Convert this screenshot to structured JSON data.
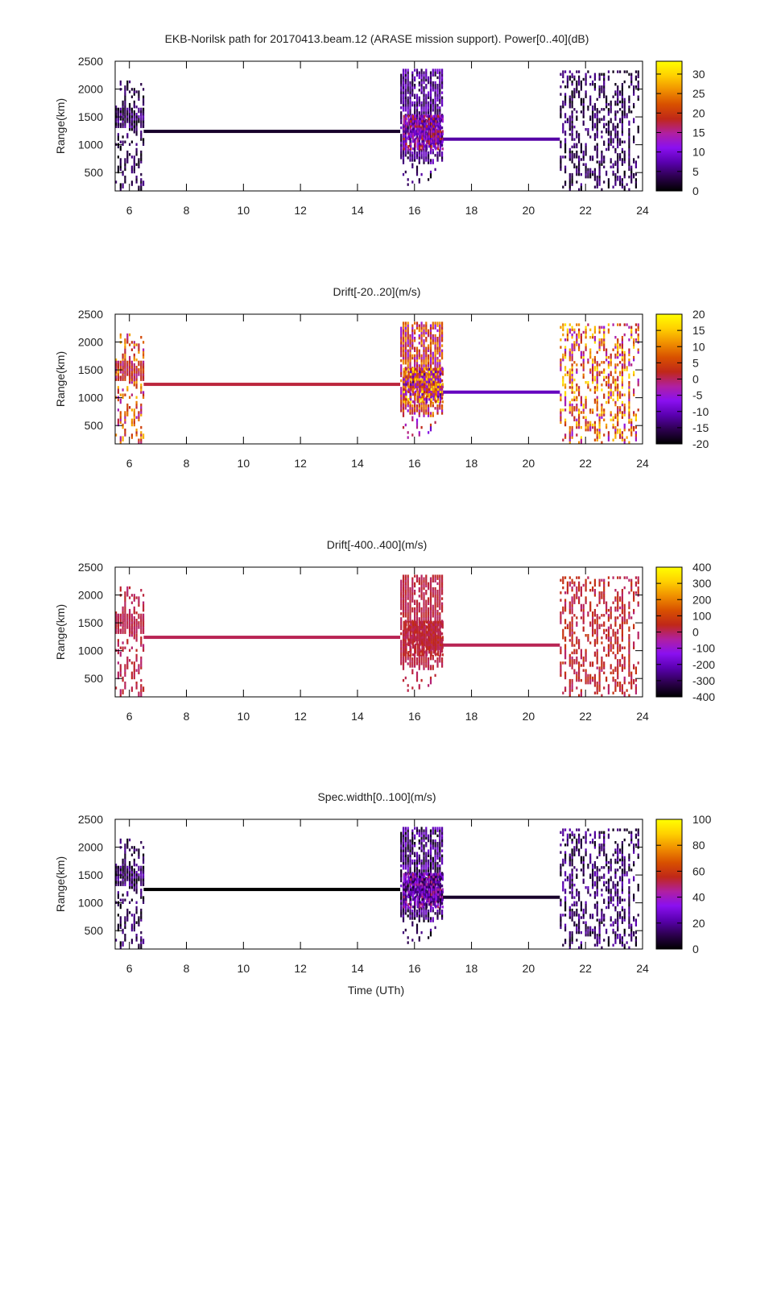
{
  "chart_data": {
    "type": "heatmap",
    "title": "EKB-Norilsk path for 20170413.beam.12 (ARASE mission support). Power[0..40](dB)",
    "xlabel": "Time (UTh)",
    "ylabel": "Range(km)",
    "xlim": [
      5.5,
      24
    ],
    "ylim": [
      170,
      2500
    ],
    "xticks": [
      6,
      8,
      10,
      12,
      14,
      16,
      18,
      20,
      22,
      24
    ],
    "yticks": [
      500,
      1000,
      1500,
      2000,
      2500
    ],
    "grid": false,
    "cell_size": {
      "hours": 0.08,
      "km": 45
    },
    "scatter_regions": [
      {
        "x": [
          5.5,
          6.5
        ],
        "range": [
          170,
          2150
        ],
        "density": 0.18
      },
      {
        "x": [
          5.5,
          6.5
        ],
        "range": [
          1300,
          1620
        ],
        "density": 0.7
      },
      {
        "x": [
          15.5,
          17.0
        ],
        "range": [
          650,
          2330
        ],
        "density": 0.45
      },
      {
        "x": [
          15.6,
          17.0
        ],
        "range": [
          900,
          1500
        ],
        "density": 0.8
      },
      {
        "x": [
          15.5,
          17.0
        ],
        "range": [
          170,
          650
        ],
        "density": 0.06
      },
      {
        "x": [
          21.1,
          23.9
        ],
        "range": [
          170,
          2330
        ],
        "density": 0.22
      }
    ],
    "constant_lines": [
      {
        "x": [
          6.5,
          15.5
        ],
        "range": 1240
      },
      {
        "x": [
          17.0,
          21.1
        ],
        "range": 1100
      }
    ],
    "panels": [
      {
        "title": "",
        "cbrange": [
          0,
          33.3
        ],
        "cbticks": [
          0,
          5,
          10,
          15,
          20,
          25,
          30
        ],
        "region_values": [
          [
            0,
            6
          ],
          [
            0,
            8
          ],
          [
            2,
            10
          ],
          [
            5,
            20
          ],
          [
            0,
            8
          ],
          [
            0,
            7
          ]
        ],
        "line_values": [
          2,
          7
        ]
      },
      {
        "title": "Drift[-20..20](m/s)",
        "cbrange": [
          -20,
          20
        ],
        "cbticks": [
          -20,
          -15,
          -10,
          -5,
          0,
          5,
          10,
          15,
          20
        ],
        "region_values": [
          [
            -4,
            14
          ],
          [
            -2,
            6
          ],
          [
            -6,
            12
          ],
          [
            -14,
            20
          ],
          [
            -10,
            4
          ],
          [
            -6,
            18
          ]
        ],
        "line_values": [
          1,
          -10
        ]
      },
      {
        "title": "Drift[-400..400](m/s)",
        "cbrange": [
          -400,
          400
        ],
        "cbticks": [
          -400,
          -300,
          -200,
          -100,
          0,
          100,
          200,
          300,
          400
        ],
        "region_values": [
          [
            -20,
            40
          ],
          [
            -10,
            30
          ],
          [
            -10,
            40
          ],
          [
            -10,
            60
          ],
          [
            -20,
            40
          ],
          [
            -20,
            80
          ]
        ],
        "line_values": [
          5,
          5
        ]
      },
      {
        "title": "Spec.width[0..100](m/s)",
        "cbrange": [
          0,
          100
        ],
        "cbticks": [
          0,
          20,
          40,
          60,
          80,
          100
        ],
        "region_values": [
          [
            0,
            20
          ],
          [
            0,
            25
          ],
          [
            0,
            30
          ],
          [
            5,
            50
          ],
          [
            0,
            20
          ],
          [
            0,
            25
          ]
        ],
        "line_values": [
          0,
          6
        ]
      }
    ],
    "palette": [
      "#000000",
      "#2d0050",
      "#5a00b0",
      "#8a10f0",
      "#b020a0",
      "#c02818",
      "#d85000",
      "#f09000",
      "#ffd000",
      "#ffff00"
    ]
  }
}
